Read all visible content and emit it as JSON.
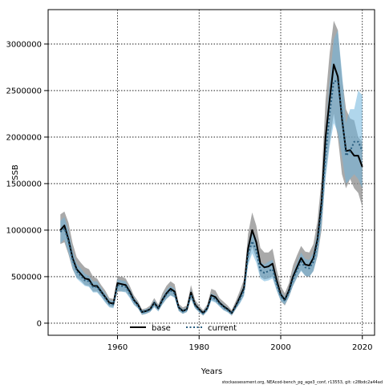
{
  "chart_data": {
    "type": "line",
    "xlabel": "Years",
    "ylabel": "SSB",
    "xlim": [
      1943,
      2023
    ],
    "ylim": [
      -130000,
      3370000
    ],
    "x_ticks": [
      1960,
      1980,
      2000,
      2020
    ],
    "y_ticks": [
      0,
      500000,
      1000000,
      1500000,
      2000000,
      2500000,
      3000000
    ],
    "grid": true,
    "legend_placement": "bottom-left",
    "colors": {
      "base_line": "#000000",
      "base_band": "#8c8c8c",
      "current_line": "#2a5f80",
      "current_band": "#6fb4dc"
    },
    "footnote": "stockassessment.org, NEAcod-bench_pg_age3_conf, r13553, git: c28bdc2a44ad",
    "series": [
      {
        "name": "base",
        "x": [
          1946,
          1947,
          1948,
          1949,
          1950,
          1951,
          1952,
          1953,
          1954,
          1955,
          1956,
          1957,
          1958,
          1959,
          1960,
          1961,
          1962,
          1963,
          1964,
          1965,
          1966,
          1967,
          1968,
          1969,
          1970,
          1971,
          1972,
          1973,
          1974,
          1975,
          1976,
          1977,
          1978,
          1979,
          1980,
          1981,
          1982,
          1983,
          1984,
          1985,
          1986,
          1987,
          1988,
          1989,
          1990,
          1991,
          1992,
          1993,
          1994,
          1995,
          1996,
          1997,
          1998,
          1999,
          2000,
          2001,
          2002,
          2003,
          2004,
          2005,
          2006,
          2007,
          2008,
          2009,
          2010,
          2011,
          2012,
          2013,
          2014,
          2015,
          2016,
          2017,
          2018,
          2019,
          2020
        ],
        "values": [
          1000000,
          1050000,
          900000,
          700000,
          580000,
          530000,
          480000,
          470000,
          400000,
          400000,
          340000,
          280000,
          220000,
          210000,
          430000,
          420000,
          410000,
          340000,
          250000,
          200000,
          120000,
          130000,
          150000,
          220000,
          160000,
          250000,
          320000,
          370000,
          340000,
          170000,
          130000,
          150000,
          330000,
          200000,
          150000,
          110000,
          160000,
          300000,
          280000,
          220000,
          180000,
          150000,
          110000,
          190000,
          280000,
          380000,
          800000,
          1000000,
          870000,
          640000,
          600000,
          610000,
          640000,
          460000,
          310000,
          250000,
          350000,
          500000,
          600000,
          700000,
          630000,
          620000,
          700000,
          900000,
          1300000,
          2000000,
          2400000,
          2780000,
          2650000,
          2200000,
          1850000,
          1860000,
          1800000,
          1800000,
          1680000
        ],
        "lower": [
          850000,
          870000,
          740000,
          580000,
          490000,
          460000,
          410000,
          400000,
          340000,
          340000,
          290000,
          230000,
          180000,
          170000,
          340000,
          340000,
          340000,
          280000,
          200000,
          160000,
          90000,
          100000,
          120000,
          180000,
          130000,
          200000,
          260000,
          300000,
          280000,
          130000,
          100000,
          120000,
          260000,
          160000,
          120000,
          80000,
          130000,
          250000,
          230000,
          180000,
          140000,
          120000,
          80000,
          150000,
          220000,
          300000,
          650000,
          820000,
          700000,
          500000,
          470000,
          480000,
          500000,
          360000,
          240000,
          190000,
          280000,
          400000,
          490000,
          570000,
          510000,
          500000,
          560000,
          720000,
          1000000,
          1600000,
          1950000,
          2250000,
          2000000,
          1600000,
          1450000,
          1550000,
          1450000,
          1400000,
          1250000
        ],
        "upper": [
          1170000,
          1200000,
          1080000,
          860000,
          710000,
          650000,
          600000,
          580000,
          500000,
          480000,
          410000,
          350000,
          270000,
          260000,
          500000,
          500000,
          480000,
          400000,
          300000,
          240000,
          150000,
          160000,
          190000,
          270000,
          200000,
          320000,
          400000,
          450000,
          420000,
          210000,
          170000,
          190000,
          410000,
          250000,
          190000,
          140000,
          200000,
          370000,
          350000,
          270000,
          230000,
          190000,
          140000,
          240000,
          350000,
          470000,
          960000,
          1190000,
          1050000,
          810000,
          760000,
          760000,
          800000,
          580000,
          400000,
          320000,
          430000,
          620000,
          730000,
          830000,
          770000,
          760000,
          850000,
          1100000,
          1550000,
          2400000,
          2900000,
          3250000,
          3150000,
          2650000,
          2300000,
          2200000,
          2180000,
          2000000,
          1950000
        ]
      },
      {
        "name": "current",
        "x": [
          1946,
          1947,
          1948,
          1949,
          1950,
          1951,
          1952,
          1953,
          1954,
          1955,
          1956,
          1957,
          1958,
          1959,
          1960,
          1961,
          1962,
          1963,
          1964,
          1965,
          1966,
          1967,
          1968,
          1969,
          1970,
          1971,
          1972,
          1973,
          1974,
          1975,
          1976,
          1977,
          1978,
          1979,
          1980,
          1981,
          1982,
          1983,
          1984,
          1985,
          1986,
          1987,
          1988,
          1989,
          1990,
          1991,
          1992,
          1993,
          1994,
          1995,
          1996,
          1997,
          1998,
          1999,
          2000,
          2001,
          2002,
          2003,
          2004,
          2005,
          2006,
          2007,
          2008,
          2009,
          2010,
          2011,
          2012,
          2013,
          2014,
          2015,
          2016,
          2017,
          2018,
          2019,
          2020
        ],
        "values": [
          980000,
          1020000,
          880000,
          680000,
          560000,
          510000,
          460000,
          450000,
          390000,
          390000,
          330000,
          270000,
          210000,
          200000,
          410000,
          400000,
          390000,
          320000,
          240000,
          190000,
          115000,
          125000,
          145000,
          210000,
          155000,
          240000,
          310000,
          350000,
          320000,
          160000,
          125000,
          145000,
          310000,
          190000,
          140000,
          105000,
          155000,
          280000,
          260000,
          210000,
          170000,
          140000,
          105000,
          180000,
          260000,
          350000,
          740000,
          880000,
          780000,
          570000,
          540000,
          560000,
          580000,
          420000,
          290000,
          240000,
          330000,
          470000,
          570000,
          660000,
          600000,
          590000,
          660000,
          860000,
          1230000,
          1800000,
          2250000,
          2600000,
          2600000,
          2250000,
          1800000,
          1850000,
          1950000,
          1950000,
          1850000
        ],
        "lower": [
          860000,
          900000,
          760000,
          590000,
          480000,
          440000,
          400000,
          390000,
          330000,
          330000,
          280000,
          220000,
          170000,
          160000,
          350000,
          340000,
          330000,
          270000,
          200000,
          160000,
          90000,
          100000,
          120000,
          170000,
          125000,
          200000,
          260000,
          300000,
          270000,
          130000,
          100000,
          120000,
          260000,
          160000,
          115000,
          85000,
          125000,
          240000,
          220000,
          180000,
          140000,
          115000,
          85000,
          150000,
          210000,
          290000,
          620000,
          750000,
          650000,
          480000,
          450000,
          460000,
          480000,
          350000,
          240000,
          200000,
          280000,
          400000,
          490000,
          560000,
          510000,
          500000,
          560000,
          730000,
          1050000,
          1550000,
          1900000,
          2150000,
          2050000,
          1800000,
          1500000,
          1550000,
          1600000,
          1550000,
          1450000
        ],
        "upper": [
          1100000,
          1140000,
          1000000,
          780000,
          640000,
          590000,
          530000,
          510000,
          450000,
          450000,
          380000,
          320000,
          250000,
          240000,
          470000,
          460000,
          450000,
          370000,
          280000,
          220000,
          140000,
          150000,
          170000,
          250000,
          185000,
          280000,
          360000,
          400000,
          370000,
          190000,
          150000,
          170000,
          360000,
          220000,
          165000,
          125000,
          185000,
          320000,
          300000,
          240000,
          200000,
          165000,
          125000,
          210000,
          310000,
          410000,
          860000,
          1010000,
          910000,
          660000,
          630000,
          660000,
          680000,
          490000,
          340000,
          280000,
          380000,
          540000,
          650000,
          760000,
          690000,
          680000,
          760000,
          990000,
          1410000,
          2050000,
          2600000,
          3050000,
          3150000,
          2700000,
          2150000,
          2300000,
          2300000,
          2500000,
          2450000
        ]
      }
    ]
  }
}
